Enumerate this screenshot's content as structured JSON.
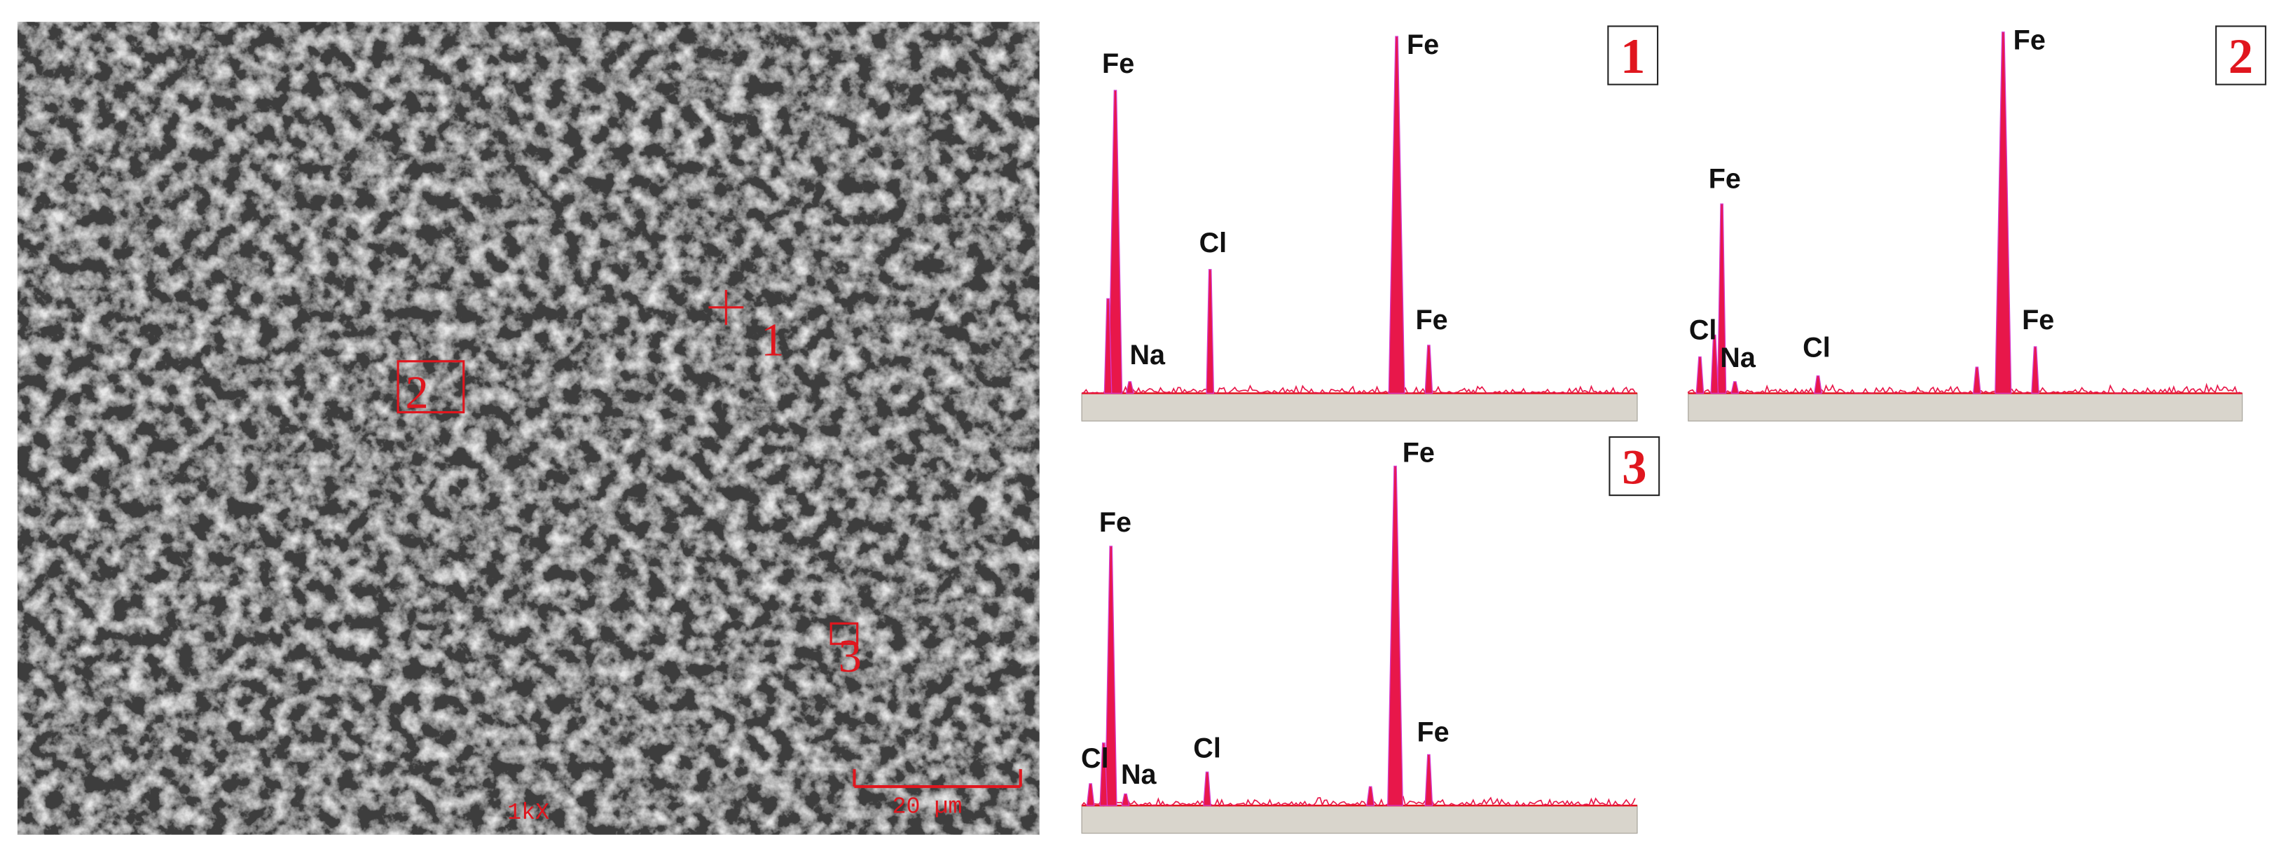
{
  "sem_image": {
    "markers": [
      "1",
      "2",
      "3"
    ],
    "magnification": "1kX",
    "scale_bar": "20 µm"
  },
  "spectra": [
    {
      "panel": "1",
      "peak_labels": [
        "Fe",
        "Na",
        "Cl",
        "Fe",
        "Fe"
      ]
    },
    {
      "panel": "2",
      "peak_labels": [
        "Fe",
        "Cl",
        "Na",
        "Cl",
        "Fe",
        "Fe"
      ]
    },
    {
      "panel": "3",
      "peak_labels": [
        "Fe",
        "Cl",
        "Na",
        "Cl",
        "Fe",
        "Fe"
      ]
    }
  ]
}
